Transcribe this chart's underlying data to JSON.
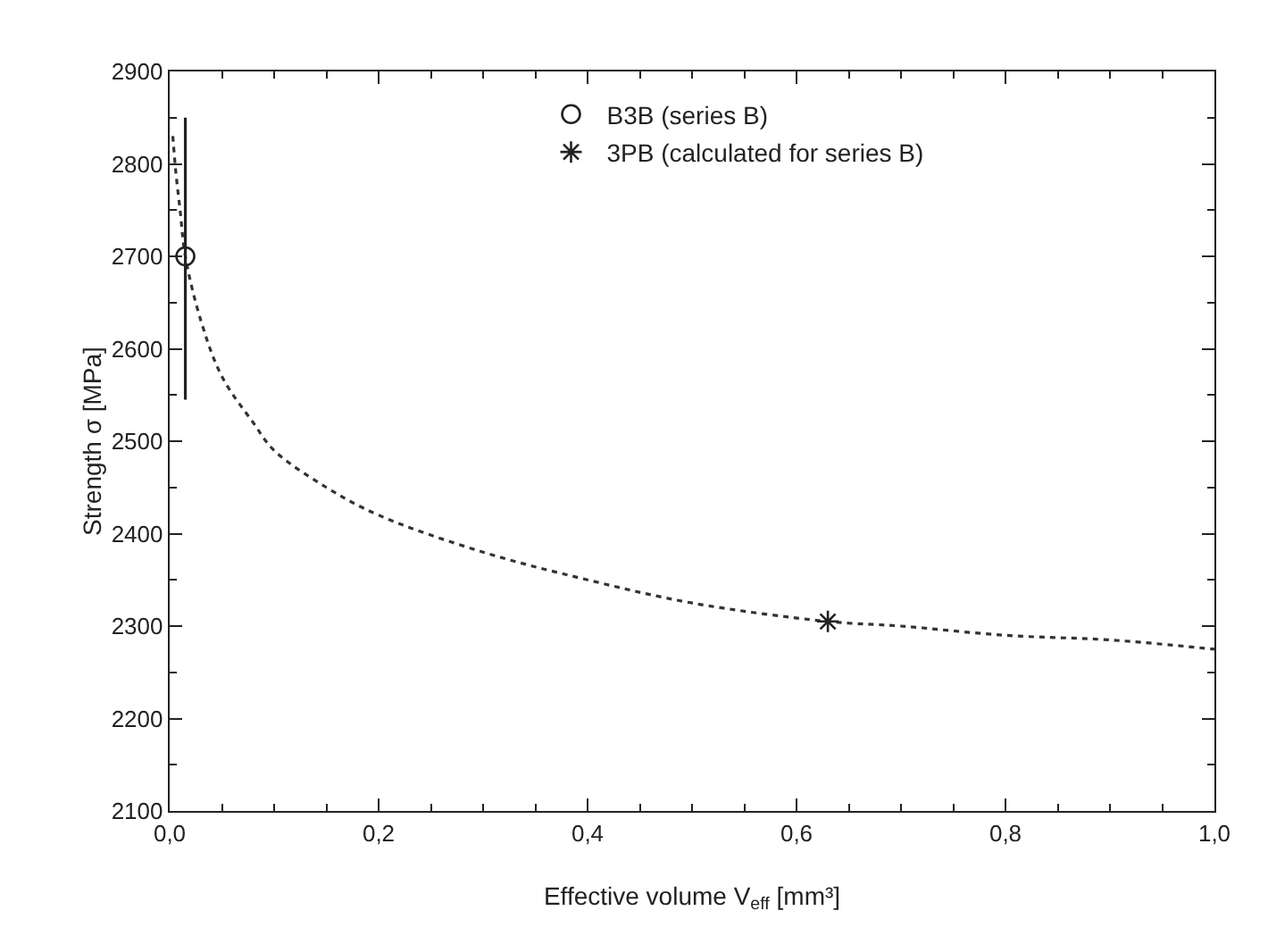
{
  "chart_data": {
    "type": "scatter",
    "xlabel": "Effective volume V$_{eff}$ [mm³]",
    "ylabel": "Strength σ [MPa]",
    "xlim": [
      0,
      1
    ],
    "xticks": [
      {
        "value": 0,
        "label": "0,0"
      },
      {
        "value": 0.2,
        "label": "0,2"
      },
      {
        "value": 0.4,
        "label": "0,4"
      },
      {
        "value": 0.6,
        "label": "0,6"
      },
      {
        "value": 0.8,
        "label": "0,8"
      },
      {
        "value": 1,
        "label": "1,0"
      }
    ],
    "ylim": [
      2100,
      2900
    ],
    "yticks": [
      2100,
      2200,
      2300,
      2400,
      2500,
      2600,
      2700,
      2800,
      2900
    ],
    "grid": false,
    "legend": "top",
    "series": [
      {
        "type": "line",
        "color": "#333333",
        "line_style": "dotted",
        "marker": "none",
        "x": [
          0.003,
          0.006,
          0.01,
          0.015,
          0.03,
          0.05,
          0.08,
          0.1,
          0.15,
          0.2,
          0.3,
          0.4,
          0.5,
          0.63,
          0.7,
          0.8,
          0.9,
          1.0
        ],
        "values": [
          2830,
          2790,
          2750,
          2700,
          2630,
          2570,
          2520,
          2490,
          2450,
          2420,
          2380,
          2350,
          2325,
          2305,
          2300,
          2290,
          2285,
          2275
        ]
      },
      {
        "name": "B3B (series B)",
        "color": "#222222",
        "marker": "circle",
        "x": [
          0.015
        ],
        "values": [
          2700
        ],
        "errors": [
          [
            2545,
            2850
          ]
        ]
      },
      {
        "name": "3PB (calculated for series B)",
        "color": "#222222",
        "marker": "cross",
        "x": [
          0.63
        ],
        "values": [
          2305
        ]
      }
    ]
  }
}
